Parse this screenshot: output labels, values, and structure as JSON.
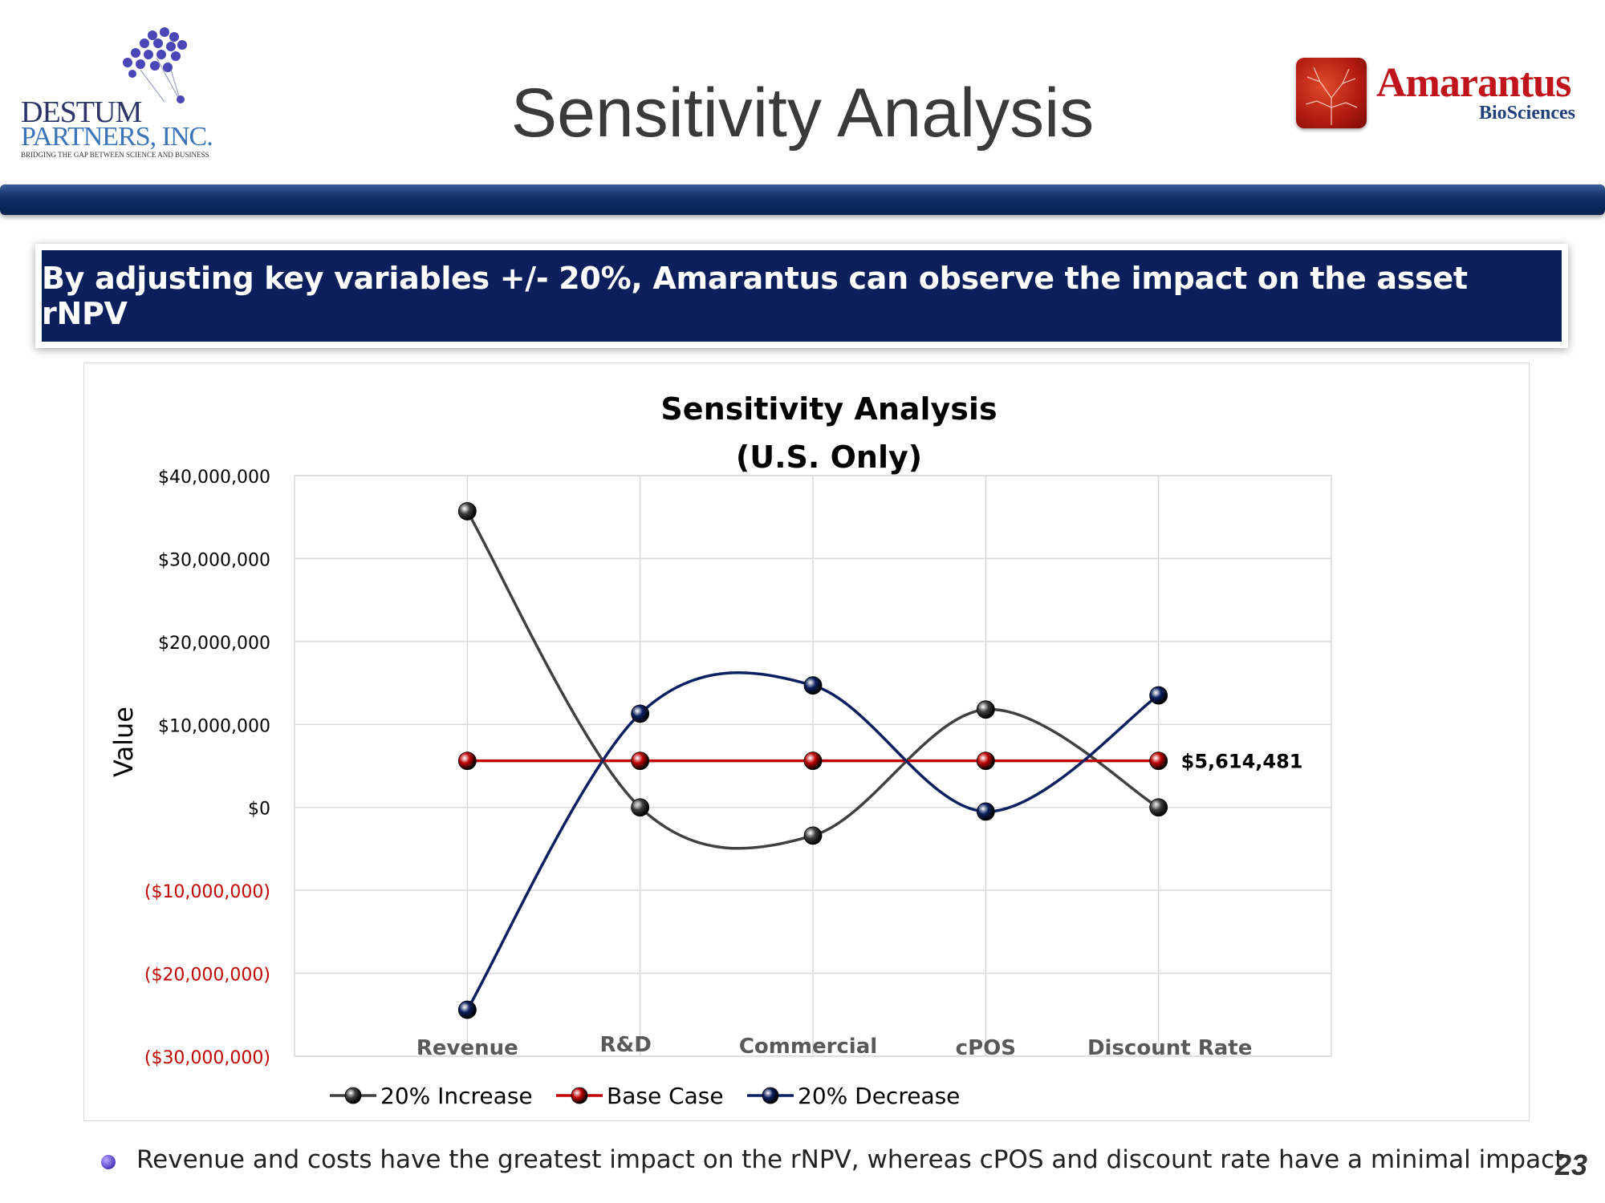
{
  "slide": {
    "title": "Sensitivity Analysis",
    "banner_text": "By adjusting key variables +/- 20%, Amarantus can observe the impact on the asset rNPV",
    "bullet_text": "Revenue and costs have the greatest impact on the rNPV, whereas cPOS and discount rate have a minimal impact",
    "page_number": "23"
  },
  "logos": {
    "left": {
      "line1": "DESTUM",
      "line2": "PARTNERS, INC.",
      "tagline": "BRIDGING THE GAP BETWEEN SCIENCE AND BUSINESS"
    },
    "right": {
      "name": "Amarantus",
      "sub": "BioSciences"
    }
  },
  "colors": {
    "increase": "#404040",
    "base": "#c00000",
    "decrease": "#0b2060",
    "negative_tick": "#c00000",
    "grid": "#d9d9d9"
  },
  "chart_data": {
    "type": "line",
    "title_line1": "Sensitivity Analysis",
    "title_line2": "(U.S. Only)",
    "ylabel": "Value",
    "xlabel": "",
    "ylim": [
      -30000000,
      40000000
    ],
    "yticks": [
      {
        "value": 40000000,
        "label": "$40,000,000"
      },
      {
        "value": 30000000,
        "label": "$30,000,000"
      },
      {
        "value": 20000000,
        "label": "$20,000,000"
      },
      {
        "value": 10000000,
        "label": "$10,000,000"
      },
      {
        "value": 0,
        "label": "$0"
      },
      {
        "value": -10000000,
        "label": "($10,000,000)"
      },
      {
        "value": -20000000,
        "label": "($20,000,000)"
      },
      {
        "value": -30000000,
        "label": "($30,000,000)"
      }
    ],
    "categories": [
      "Revenue",
      "R&D",
      "Commercial",
      "cPOS",
      "Discount Rate"
    ],
    "series": [
      {
        "name": "20% Increase",
        "color_key": "increase",
        "values": [
          35700000,
          0,
          -3400000,
          11800000,
          0
        ]
      },
      {
        "name": "Base Case",
        "color_key": "base",
        "values": [
          5614481,
          5614481,
          5614481,
          5614481,
          5614481
        ]
      },
      {
        "name": "20% Decrease",
        "color_key": "decrease",
        "values": [
          -24400000,
          11300000,
          14700000,
          -500000,
          13500000
        ]
      }
    ],
    "annotation": {
      "text": "$5,614,481",
      "series": "Base Case",
      "category": "Discount Rate",
      "value": 5614481
    }
  }
}
